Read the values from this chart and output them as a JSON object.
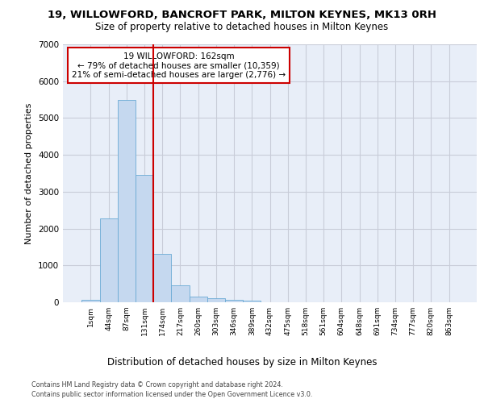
{
  "title_line1": "19, WILLOWFORD, BANCROFT PARK, MILTON KEYNES, MK13 0RH",
  "title_line2": "Size of property relative to detached houses in Milton Keynes",
  "xlabel": "Distribution of detached houses by size in Milton Keynes",
  "ylabel": "Number of detached properties",
  "footer_line1": "Contains HM Land Registry data © Crown copyright and database right 2024.",
  "footer_line2": "Contains public sector information licensed under the Open Government Licence v3.0.",
  "bar_color": "#c5d8ef",
  "bar_edge_color": "#6aaad4",
  "background_color": "#e8eef8",
  "grid_color": "#c8ccd8",
  "annotation_text_line1": "19 WILLOWFORD: 162sqm",
  "annotation_text_line2": "← 79% of detached houses are smaller (10,359)",
  "annotation_text_line3": "21% of semi-detached houses are larger (2,776) →",
  "annotation_box_color": "#ffffff",
  "annotation_box_edge": "#cc0000",
  "vline_color": "#cc0000",
  "vline_x": 3.5,
  "categories": [
    "1sqm",
    "44sqm",
    "87sqm",
    "131sqm",
    "174sqm",
    "217sqm",
    "260sqm",
    "303sqm",
    "346sqm",
    "389sqm",
    "432sqm",
    "475sqm",
    "518sqm",
    "561sqm",
    "604sqm",
    "648sqm",
    "691sqm",
    "734sqm",
    "777sqm",
    "820sqm",
    "863sqm"
  ],
  "values": [
    75,
    2280,
    5480,
    3450,
    1310,
    470,
    155,
    100,
    65,
    40,
    0,
    0,
    0,
    0,
    0,
    0,
    0,
    0,
    0,
    0,
    0
  ],
  "ylim": [
    0,
    7000
  ],
  "yticks": [
    0,
    1000,
    2000,
    3000,
    4000,
    5000,
    6000,
    7000
  ]
}
